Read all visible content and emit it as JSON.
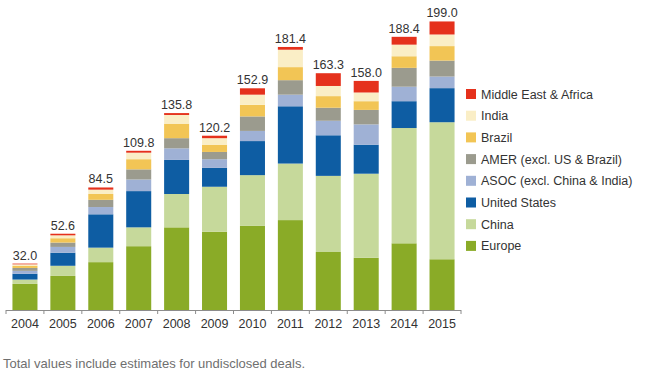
{
  "chart_data": {
    "type": "bar",
    "stacked": true,
    "tick_labels": "x",
    "legend": "right",
    "categories": [
      "2004",
      "2005",
      "2006",
      "2007",
      "2008",
      "2009",
      "2010",
      "2011",
      "2012",
      "2013",
      "2014",
      "2015"
    ],
    "ylim": [
      0,
      200
    ],
    "totals": [
      32.0,
      52.6,
      84.5,
      109.8,
      135.8,
      120.2,
      152.9,
      181.4,
      163.3,
      158.0,
      188.4,
      199.0
    ],
    "total_labels": [
      "32.0",
      "52.6",
      "84.5",
      "109.8",
      "135.8",
      "120.2",
      "152.9",
      "181.4",
      "163.3",
      "158.0",
      "188.4",
      "199.0"
    ],
    "footnote": "Total values include estimates for undisclosed deals.",
    "series": [
      {
        "name": "Europe",
        "color": "#8aab27",
        "values": [
          18,
          23.5,
          33,
          44,
          57,
          54,
          58,
          62,
          40,
          36,
          46,
          35
        ]
      },
      {
        "name": "China",
        "color": "#c6d99b",
        "values": [
          3,
          7,
          10,
          13,
          23,
          31,
          35,
          39,
          52.5,
          58,
          79.5,
          94.5
        ]
      },
      {
        "name": "United States",
        "color": "#0e5da3",
        "values": [
          4,
          9,
          23,
          25,
          23.5,
          13,
          23.5,
          39.5,
          28,
          20,
          18.5,
          23.5
        ]
      },
      {
        "name": "ASOC (excl. China & India)",
        "color": "#9fb1d5",
        "values": [
          2,
          4,
          5,
          8,
          8,
          6,
          7,
          8,
          10,
          14,
          10,
          8
        ]
      },
      {
        "name": "AMER (excl. US & Brazil)",
        "color": "#9b9b8e",
        "values": [
          2,
          3,
          5,
          7,
          7,
          5,
          10,
          10,
          9,
          10,
          13,
          11
        ]
      },
      {
        "name": "Brazil",
        "color": "#f2c555",
        "values": [
          1.5,
          3,
          4,
          7,
          10,
          5,
          8,
          9,
          8,
          6,
          8,
          10
        ]
      },
      {
        "name": "India",
        "color": "#faeec6",
        "values": [
          1,
          2,
          3,
          4.5,
          6,
          4.5,
          7,
          12,
          7,
          6,
          8,
          8
        ]
      },
      {
        "name": "Middle East & Africa",
        "color": "#e5311c",
        "values": [
          0.5,
          1.1,
          1.5,
          1.3,
          1.3,
          1.7,
          4.4,
          1.9,
          8.8,
          8,
          5.4,
          9
        ]
      }
    ]
  }
}
